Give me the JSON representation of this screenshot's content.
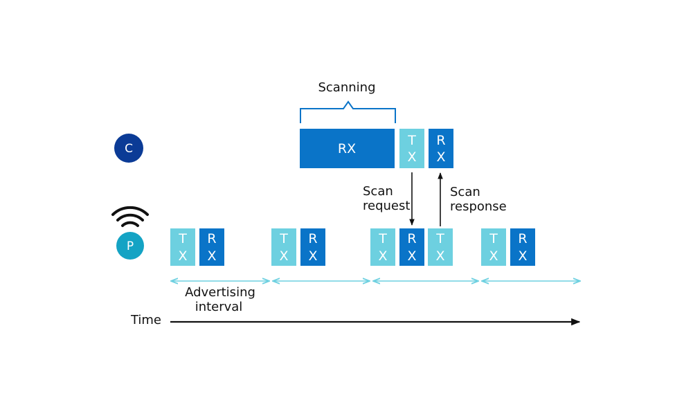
{
  "colors": {
    "light_box": "#6dd0e0",
    "dark_box": "#0a74c8",
    "central_node": "#0b3b96",
    "peripheral_node": "#14a3c4",
    "interval_arrow": "#6dd0e0",
    "text": "#111111",
    "bracket": "#0a74c8"
  },
  "central": {
    "node_label": "C",
    "scanning_label": "Scanning",
    "rx_window_label": "RX",
    "tx_box": {
      "top": "T",
      "bottom": "X"
    },
    "rx_box": {
      "top": "R",
      "bottom": "X"
    }
  },
  "peripheral": {
    "node_label": "P",
    "icon": "wireless-signal-icon",
    "events": [
      {
        "tx": {
          "top": "T",
          "bottom": "X"
        },
        "rx": {
          "top": "R",
          "bottom": "X"
        }
      },
      {
        "tx": {
          "top": "T",
          "bottom": "X"
        },
        "rx": {
          "top": "R",
          "bottom": "X"
        }
      },
      {
        "tx": {
          "top": "T",
          "bottom": "X"
        },
        "rx": {
          "top": "R",
          "bottom": "X"
        },
        "tx2": {
          "top": "T",
          "bottom": "X"
        }
      },
      {
        "tx": {
          "top": "T",
          "bottom": "X"
        },
        "rx": {
          "top": "R",
          "bottom": "X"
        }
      }
    ]
  },
  "labels": {
    "scan_request": [
      "Scan",
      "request"
    ],
    "scan_response": [
      "Scan",
      "response"
    ],
    "advertising_interval": [
      "Advertising",
      "interval"
    ],
    "time": "Time"
  }
}
